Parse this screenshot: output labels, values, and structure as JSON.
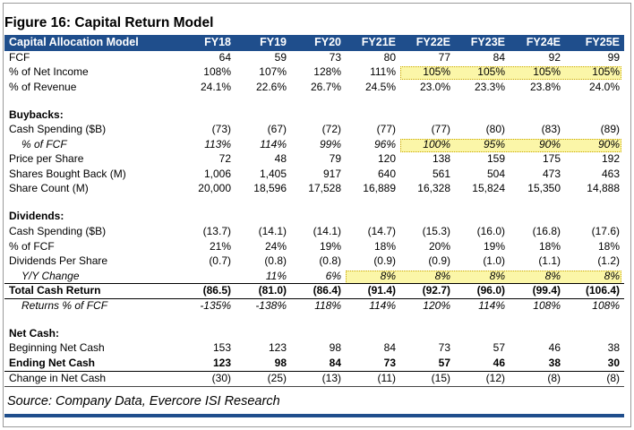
{
  "title": "Figure 16: Capital Return Model",
  "header": {
    "label": "Capital Allocation Model",
    "years": [
      "FY18",
      "FY19",
      "FY20",
      "FY21E",
      "FY22E",
      "FY23E",
      "FY24E",
      "FY25E"
    ]
  },
  "colors": {
    "header_bg": "#1f4e8c",
    "highlight": "#fbf6a8"
  },
  "rows": [
    {
      "label": "FCF",
      "values": [
        "64",
        "59",
        "73",
        "80",
        "77",
        "84",
        "92",
        "99"
      ]
    },
    {
      "label": "% of Net Income",
      "values": [
        "108%",
        "107%",
        "128%",
        "111%",
        "105%",
        "105%",
        "105%",
        "105%"
      ]
    },
    {
      "label": "% of Revenue",
      "values": [
        "24.1%",
        "22.6%",
        "26.7%",
        "24.5%",
        "23.0%",
        "23.3%",
        "23.8%",
        "24.0%"
      ]
    },
    {
      "label": "Buybacks:"
    },
    {
      "label": "Cash Spending ($B)",
      "values": [
        "(73)",
        "(67)",
        "(72)",
        "(77)",
        "(77)",
        "(80)",
        "(83)",
        "(89)"
      ]
    },
    {
      "label": "% of FCF",
      "values": [
        "113%",
        "114%",
        "99%",
        "96%",
        "100%",
        "95%",
        "90%",
        "90%"
      ]
    },
    {
      "label": "Price per Share",
      "values": [
        "72",
        "48",
        "79",
        "120",
        "138",
        "159",
        "175",
        "192"
      ]
    },
    {
      "label": "Shares Bought Back (M)",
      "values": [
        "1,006",
        "1,405",
        "917",
        "640",
        "561",
        "504",
        "473",
        "463"
      ]
    },
    {
      "label": "Share Count (M)",
      "values": [
        "20,000",
        "18,596",
        "17,528",
        "16,889",
        "16,328",
        "15,824",
        "15,350",
        "14,888"
      ]
    },
    {
      "label": "Dividends:"
    },
    {
      "label": "Cash Spending ($B)",
      "values": [
        "(13.7)",
        "(14.1)",
        "(14.1)",
        "(14.7)",
        "(15.3)",
        "(16.0)",
        "(16.8)",
        "(17.6)"
      ]
    },
    {
      "label": "% of FCF",
      "values": [
        "21%",
        "24%",
        "19%",
        "18%",
        "20%",
        "19%",
        "18%",
        "18%"
      ]
    },
    {
      "label": "Dividends Per Share",
      "values": [
        "(0.7)",
        "(0.8)",
        "(0.8)",
        "(0.9)",
        "(0.9)",
        "(1.0)",
        "(1.1)",
        "(1.2)"
      ]
    },
    {
      "label": "Y/Y Change",
      "values": [
        "",
        "11%",
        "6%",
        "8%",
        "8%",
        "8%",
        "8%",
        "8%"
      ]
    },
    {
      "label": "Total Cash Return",
      "values": [
        "(86.5)",
        "(81.0)",
        "(86.4)",
        "(91.4)",
        "(92.7)",
        "(96.0)",
        "(99.4)",
        "(106.4)"
      ]
    },
    {
      "label": "Returns % of FCF",
      "values": [
        "-135%",
        "-138%",
        "118%",
        "114%",
        "120%",
        "114%",
        "108%",
        "108%"
      ]
    },
    {
      "label": "Net Cash:"
    },
    {
      "label": "Beginning Net Cash",
      "values": [
        "153",
        "123",
        "98",
        "84",
        "73",
        "57",
        "46",
        "38"
      ]
    },
    {
      "label": "Ending Net Cash",
      "values": [
        "123",
        "98",
        "84",
        "73",
        "57",
        "46",
        "38",
        "30"
      ]
    },
    {
      "label": "Change in Net Cash",
      "values": [
        "(30)",
        "(25)",
        "(13)",
        "(11)",
        "(15)",
        "(12)",
        "(8)",
        "(8)"
      ]
    }
  ],
  "source": "Source: Company Data, Evercore ISI Research"
}
